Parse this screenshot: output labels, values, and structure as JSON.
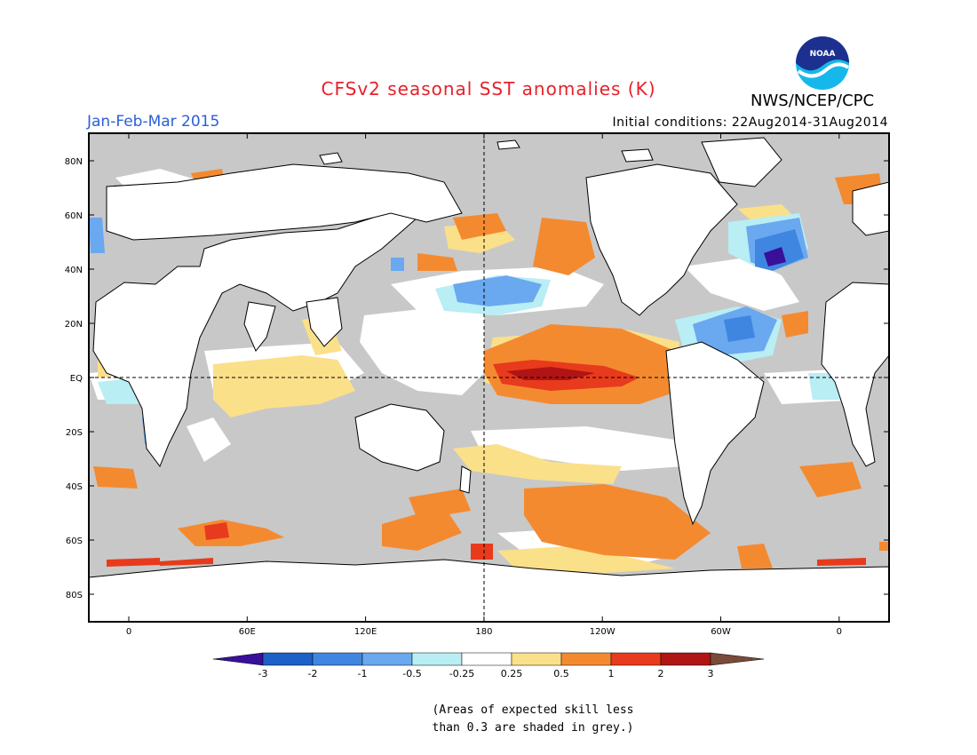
{
  "header": {
    "title": "CFSv2 seasonal SST anomalies (K)",
    "period": "Jan-Feb-Mar 2015",
    "initial_conditions": "Initial conditions: 22Aug2014-31Aug2014",
    "agency": "NWS/NCEP/CPC",
    "logo_text": "NOAA"
  },
  "map": {
    "lat_labels": [
      "80N",
      "60N",
      "40N",
      "20N",
      "EQ",
      "20S",
      "40S",
      "60S",
      "80S"
    ],
    "lon_labels": [
      "0",
      "60E",
      "120E",
      "180",
      "120W",
      "60W",
      "0"
    ],
    "colors": {
      "land": "#ffffff",
      "low_skill_grey": "#c8c8c8",
      "coast": "#000000"
    }
  },
  "colorbar": {
    "tick_labels": [
      "-3",
      "-2",
      "-1",
      "-0.5",
      "-0.25",
      "0.25",
      "0.5",
      "1",
      "2",
      "3"
    ],
    "colors": [
      "#3a0f9a",
      "#1c60c8",
      "#3f86e0",
      "#6aa8f0",
      "#b8eef4",
      "#ffffff",
      "#fbe08a",
      "#f48a30",
      "#e83a1c",
      "#b01414",
      "#7a4a3a"
    ]
  },
  "note": {
    "line1": "(Areas of expected skill less",
    "line2": "than 0.3 are shaded in grey.)"
  }
}
